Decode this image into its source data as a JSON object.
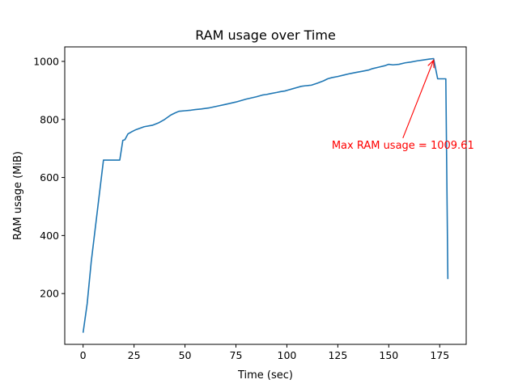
{
  "chart_data": {
    "type": "line",
    "title": "RAM usage over Time",
    "xlabel": "Time (sec)",
    "ylabel": "RAM usage (MiB)",
    "xlim": [
      -9,
      188
    ],
    "ylim": [
      25,
      1050
    ],
    "xticks": [
      0,
      25,
      50,
      75,
      100,
      125,
      150,
      175
    ],
    "yticks": [
      200,
      400,
      600,
      800,
      1000
    ],
    "grid": false,
    "legend": "none",
    "series": [
      {
        "color": "#1f77b4",
        "x": [
          0,
          2,
          4,
          10,
          18,
          19.5,
          20.5,
          22,
          24,
          26,
          30,
          34,
          37,
          40,
          43,
          45,
          47,
          50,
          53,
          55,
          58,
          62,
          66,
          70,
          75,
          80,
          85,
          88,
          90,
          92,
          95,
          97,
          99,
          101,
          103,
          105,
          107,
          109,
          112,
          115,
          118,
          120,
          122,
          125,
          128,
          131,
          134,
          137,
          140,
          142,
          145,
          148,
          150,
          152,
          155,
          158,
          161,
          164,
          167,
          170,
          172,
          174,
          176,
          178,
          179
        ],
        "y": [
          65,
          165,
          310,
          660,
          660,
          728,
          730,
          750,
          758,
          765,
          775,
          780,
          788,
          800,
          815,
          822,
          828,
          830,
          832,
          834,
          836,
          840,
          846,
          852,
          860,
          870,
          878,
          884,
          886,
          889,
          893,
          896,
          898,
          902,
          906,
          910,
          914,
          916,
          918,
          925,
          933,
          940,
          944,
          948,
          953,
          958,
          962,
          966,
          970,
          975,
          980,
          985,
          990,
          988,
          990,
          995,
          998,
          1002,
          1005,
          1008,
          1009.61,
          940,
          940,
          940,
          250
        ]
      }
    ],
    "annotations": [
      {
        "text": "Max RAM usage = 1009.61",
        "color": "#ff0000",
        "xy": [
          172,
          1009.61
        ],
        "text_xy": [
          122,
          712
        ]
      }
    ]
  }
}
